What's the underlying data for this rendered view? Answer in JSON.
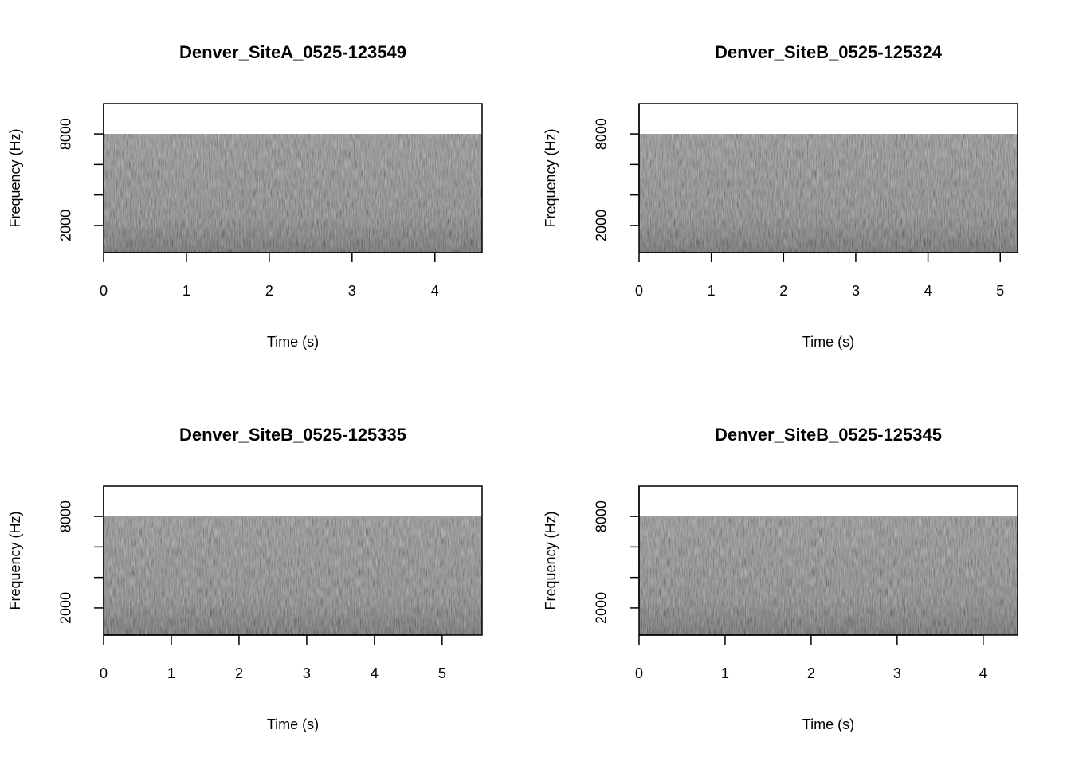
{
  "chart_data": [
    {
      "type": "spectrogram",
      "title": "Denver_SiteA_0525-123549",
      "xlabel": "Time (s)",
      "ylabel": "Frequency (Hz)",
      "xlim": [
        0,
        4.57
      ],
      "xticks": [
        0,
        1,
        2,
        3,
        4
      ],
      "ylim": [
        220,
        9990
      ],
      "yticks": [
        2000,
        8000
      ],
      "yminorticks": [
        4000,
        6000
      ],
      "freq_max": 8000
    },
    {
      "type": "spectrogram",
      "title": "Denver_SiteB_0525-125324",
      "xlabel": "Time (s)",
      "ylabel": "Frequency (Hz)",
      "xlim": [
        0,
        5.24
      ],
      "xticks": [
        0,
        1,
        2,
        3,
        4,
        5
      ],
      "ylim": [
        220,
        9990
      ],
      "yticks": [
        2000,
        8000
      ],
      "yminorticks": [
        4000,
        6000
      ],
      "freq_max": 8000
    },
    {
      "type": "spectrogram",
      "title": "Denver_SiteB_0525-125335",
      "xlabel": "Time (s)",
      "ylabel": "Frequency (Hz)",
      "xlim": [
        0,
        5.59
      ],
      "xticks": [
        0,
        1,
        2,
        3,
        4,
        5
      ],
      "ylim": [
        220,
        9990
      ],
      "yticks": [
        2000,
        8000
      ],
      "yminorticks": [
        4000,
        6000
      ],
      "freq_max": 8000
    },
    {
      "type": "spectrogram",
      "title": "Denver_SiteB_0525-125345",
      "xlabel": "Time (s)",
      "ylabel": "Frequency (Hz)",
      "xlim": [
        0,
        4.4
      ],
      "xticks": [
        0,
        1,
        2,
        3,
        4
      ],
      "ylim": [
        220,
        9990
      ],
      "yticks": [
        2000,
        8000
      ],
      "yminorticks": [
        4000,
        6000
      ],
      "freq_max": 8000
    }
  ]
}
